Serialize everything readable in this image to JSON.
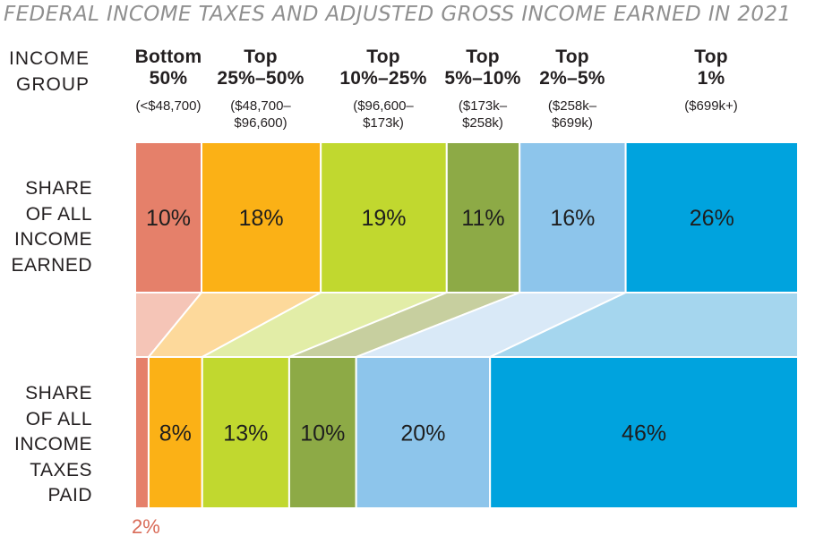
{
  "title": "FEDERAL INCOME TAXES AND ADJUSTED GROSS INCOME EARNED IN 2021",
  "labels": {
    "income_group": "INCOME\nGROUP",
    "income_earned_row": "SHARE\nOF ALL\nINCOME\nEARNED",
    "taxes_paid_row": "SHARE\nOF ALL\nINCOME\nTAXES\nPAID"
  },
  "chart_data": {
    "type": "bar",
    "subtype": "100-percent-stacked-sankey-comparison",
    "title": "FEDERAL INCOME TAXES AND ADJUSTED GROSS INCOME EARNED IN 2021",
    "categories": [
      "Bottom 50%",
      "Top 25%-50%",
      "Top 10%-25%",
      "Top 5%-10%",
      "Top 2%-5%",
      "Top 1%"
    ],
    "series": [
      {
        "name": "SHARE OF ALL INCOME EARNED",
        "unit": "%",
        "values": [
          10,
          18,
          19,
          11,
          16,
          26
        ]
      },
      {
        "name": "SHARE OF ALL INCOME TAXES PAID",
        "unit": "%",
        "values": [
          2,
          8,
          13,
          10,
          20,
          46
        ]
      }
    ],
    "groups": [
      {
        "label": "Bottom\n50%",
        "range": "(<$48,700)",
        "income_pct": "10%",
        "tax_pct": "2%",
        "color": "#E5806A",
        "flow_color": "#F5C5B7"
      },
      {
        "label": "Top\n25%–50%",
        "range": "($48,700–\n$96,600)",
        "income_pct": "18%",
        "tax_pct": "8%",
        "color": "#FBB116",
        "flow_color": "#FDD99B"
      },
      {
        "label": "Top\n10%–25%",
        "range": "($96,600–\n$173k)",
        "income_pct": "19%",
        "tax_pct": "13%",
        "color": "#C1D82F",
        "flow_color": "#E2EDA7"
      },
      {
        "label": "Top\n5%–10%",
        "range": "($173k–\n$258k)",
        "income_pct": "11%",
        "tax_pct": "10%",
        "color": "#8DAA46",
        "flow_color": "#C7CF9F"
      },
      {
        "label": "Top\n2%–5%",
        "range": "($258k–\n$699k)",
        "income_pct": "16%",
        "tax_pct": "20%",
        "color": "#8DC5EB",
        "flow_color": "#D9E9F7"
      },
      {
        "label": "Top\n1%",
        "range": "($699k+)",
        "income_pct": "26%",
        "tax_pct": "46%",
        "color": "#00A3DE",
        "flow_color": "#A5D6EE"
      }
    ],
    "tax_outside_label": {
      "text": "2%",
      "color": "#D96B58"
    },
    "text_color": "#1E1E1E",
    "title_color": "#8F8F8F",
    "separator_color": "#FFFFFF",
    "legend_position": "none",
    "grid": false
  }
}
